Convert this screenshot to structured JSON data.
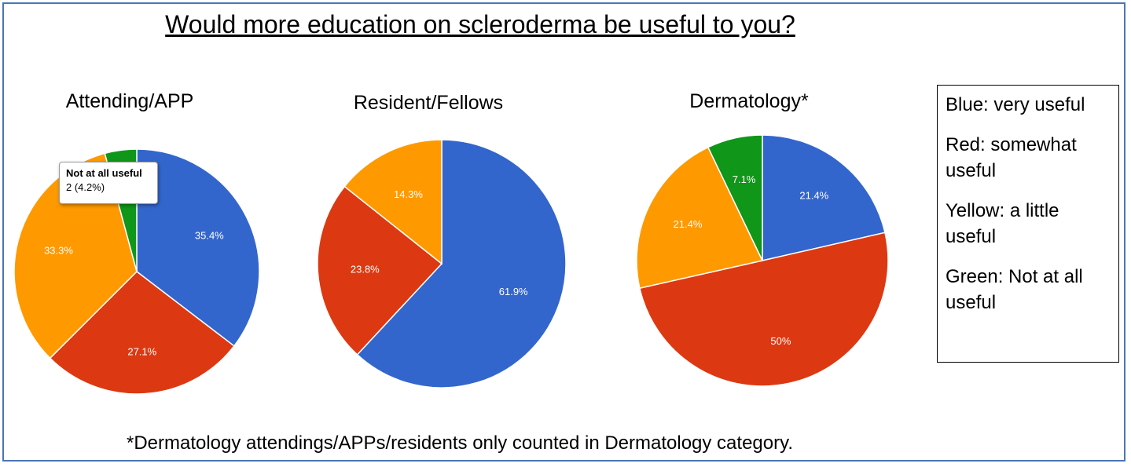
{
  "title": "Would more education on scleroderma be useful to you?",
  "colors": {
    "very_useful": "#3366cc",
    "somewhat_useful": "#dc3912",
    "a_little_useful": "#ff9900",
    "not_at_all_useful": "#109618"
  },
  "chart_data": [
    {
      "type": "pie",
      "title": "Attending/APP",
      "labels": [
        "very useful",
        "somewhat useful",
        "a little useful",
        "Not at all useful"
      ],
      "values": [
        35.4,
        27.1,
        33.3,
        4.2
      ],
      "slice_labels": [
        "35.4%",
        "27.1%",
        "33.3%",
        ""
      ],
      "tooltip": {
        "title": "Not at all useful",
        "value": "2 (4.2%)"
      }
    },
    {
      "type": "pie",
      "title": "Resident/Fellows",
      "labels": [
        "very useful",
        "somewhat useful",
        "a little useful",
        "Not at all useful"
      ],
      "values": [
        61.9,
        23.8,
        14.3,
        0
      ],
      "slice_labels": [
        "61.9%",
        "23.8%",
        "14.3%",
        ""
      ]
    },
    {
      "type": "pie",
      "title": "Dermatology*",
      "labels": [
        "very useful",
        "somewhat useful",
        "a little useful",
        "Not at all useful"
      ],
      "values": [
        21.4,
        50,
        21.4,
        7.1
      ],
      "slice_labels": [
        "21.4%",
        "50%",
        "21.4%",
        "7.1%"
      ]
    }
  ],
  "legend": [
    "Blue: very useful",
    "Red: somewhat useful",
    "Yellow: a little useful",
    "Green: Not at all useful"
  ],
  "footnote": "*Dermatology attendings/APPs/residents only counted in Dermatology category."
}
